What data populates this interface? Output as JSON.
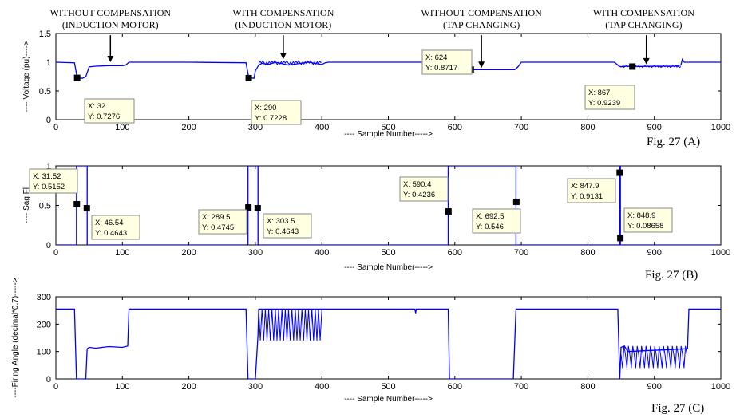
{
  "chart_data": [
    {
      "type": "line",
      "caption": "Fig. 27 (A)",
      "xlabel": "---- Sample Number----->",
      "ylabel": "---- Voltage (pu)---->",
      "xlim": [
        0,
        1000
      ],
      "ylim": [
        0,
        1.5
      ],
      "xticks": [
        "0",
        "100",
        "200",
        "300",
        "400",
        "500",
        "600",
        "700",
        "800",
        "900",
        "1000"
      ],
      "yticks": [
        "0",
        "0.5",
        "1",
        "1.5"
      ],
      "grid": false,
      "color": "#0000ff",
      "series": [
        {
          "x": [
            0,
            28,
            32,
            40,
            45,
            50,
            60,
            80,
            100,
            105,
            110,
            115,
            200,
            286,
            290,
            298,
            300,
            305,
            310,
            320,
            330,
            350,
            380,
            400,
            405,
            410,
            430,
            450,
            480,
            500,
            530,
            560,
            565,
            590,
            620,
            624,
            650,
            680,
            690,
            695,
            700,
            750,
            800,
            840,
            847,
            850,
            855,
            867,
            900,
            930,
            940,
            942,
            945,
            950,
            1000
          ],
          "y": [
            1.0,
            0.99,
            0.73,
            0.72,
            0.75,
            0.92,
            0.93,
            0.94,
            0.94,
            0.95,
            1.0,
            1.0,
            1.0,
            0.99,
            0.73,
            0.72,
            0.85,
            0.95,
            0.98,
            0.96,
            1.0,
            0.95,
            1.0,
            0.96,
            0.99,
            1.0,
            1.0,
            1.0,
            1.0,
            1.0,
            1.0,
            1.0,
            0.87,
            0.87,
            0.87,
            0.8717,
            0.87,
            0.87,
            0.87,
            0.92,
            1.0,
            1.0,
            1.0,
            1.0,
            0.93,
            0.92,
            0.93,
            0.9239,
            0.93,
            0.93,
            0.95,
            1.05,
            1.0,
            1.0,
            1.0
          ]
        }
      ],
      "datatips": [
        {
          "x": 32,
          "y": 0.7276,
          "label_x": "X: 32",
          "label_y": "Y: 0.7276"
        },
        {
          "x": 290,
          "y": 0.7228,
          "label_x": "X: 290",
          "label_y": "Y: 0.7228"
        },
        {
          "x": 624,
          "y": 0.8717,
          "label_x": "X: 624",
          "label_y": "Y: 0.8717"
        },
        {
          "x": 867,
          "y": 0.9239,
          "label_x": "X: 867",
          "label_y": "Y: 0.9239"
        }
      ],
      "annotations": [
        {
          "line1": "WITHOUT COMPENSATION",
          "line2": "(INDUCTION MOTOR)",
          "x": 82
        },
        {
          "line1": "WITH COMPENSATION",
          "line2": "(INDUCTION MOTOR)",
          "x": 342
        },
        {
          "line1": "WITHOUT COMPENSATION",
          "line2": "(TAP CHANGING)",
          "x": 640
        },
        {
          "line1": "WITH COMPENSATION",
          "line2": "(TAP CHANGING)",
          "x": 884
        }
      ],
      "arrows": [
        {
          "x_from": 82,
          "y_from": 1.47,
          "x_to": 82,
          "y_to": 1.0
        },
        {
          "x_from": 342,
          "y_from": 1.47,
          "x_to": 342,
          "y_to": 1.05
        },
        {
          "x_from": 640,
          "y_from": 1.47,
          "x_to": 640,
          "y_to": 0.9
        },
        {
          "x_from": 888,
          "y_from": 1.47,
          "x_to": 888,
          "y_to": 0.96
        }
      ]
    },
    {
      "type": "line",
      "caption": "Fig. 27 (B)",
      "xlabel": "---- Sample Number----->",
      "ylabel": "---- Sag Fl",
      "xlim": [
        0,
        1000
      ],
      "ylim": [
        0,
        1
      ],
      "xticks": [
        "0",
        "100",
        "200",
        "300",
        "400",
        "500",
        "600",
        "700",
        "800",
        "900",
        "1000"
      ],
      "yticks": [
        "0",
        "0.5",
        "1"
      ],
      "grid": false,
      "color": "#0000ff",
      "series": [
        {
          "x": [
            0,
            31,
            31,
            47,
            47,
            289,
            289,
            304,
            304,
            590,
            590,
            692,
            692,
            848,
            848,
            849,
            849,
            1000
          ],
          "y": [
            0,
            0,
            1,
            1,
            0,
            0,
            1,
            1,
            0,
            0,
            1,
            1,
            0,
            0,
            1,
            1,
            0,
            0
          ]
        }
      ],
      "datatips": [
        {
          "x": 31.52,
          "y": 0.5152,
          "label_x": "X: 31.52",
          "label_y": "Y: 0.5152"
        },
        {
          "x": 46.54,
          "y": 0.4643,
          "label_x": "X: 46.54",
          "label_y": "Y: 0.4643"
        },
        {
          "x": 289.5,
          "y": 0.4745,
          "label_x": "X: 289.5",
          "label_y": "Y: 0.4745"
        },
        {
          "x": 303.5,
          "y": 0.4643,
          "label_x": "X: 303.5",
          "label_y": "Y: 0.4643"
        },
        {
          "x": 590.4,
          "y": 0.4236,
          "label_x": "X: 590.4",
          "label_y": "Y: 0.4236"
        },
        {
          "x": 692.5,
          "y": 0.546,
          "label_x": "X: 692.5",
          "label_y": "Y: 0.546"
        },
        {
          "x": 847.9,
          "y": 0.9131,
          "label_x": "X: 847.9",
          "label_y": "Y: 0.9131"
        },
        {
          "x": 848.9,
          "y": 0.08658,
          "label_x": "X: 848.9",
          "label_y": "Y: 0.08658"
        }
      ]
    },
    {
      "type": "line",
      "caption": "Fig. 27 (C)",
      "xlabel": "---- Sample Number----->",
      "ylabel": "----Firing Angle (decimal*0.7)----->",
      "xlim": [
        0,
        1000
      ],
      "ylim": [
        0,
        300
      ],
      "xticks": [
        "0",
        "100",
        "200",
        "300",
        "400",
        "500",
        "600",
        "700",
        "800",
        "900",
        "1000"
      ],
      "yticks": [
        "0",
        "100",
        "200",
        "300"
      ],
      "grid": false,
      "color": "#0000ff",
      "series": [
        {
          "x": [
            0,
            28,
            31,
            45,
            47,
            50,
            60,
            80,
            100,
            108,
            110,
            200,
            286,
            289,
            300,
            304,
            305,
            400,
            402,
            500,
            540,
            541,
            542,
            543,
            580,
            590,
            592,
            688,
            692,
            700,
            845,
            848,
            850,
            855,
            860,
            950,
            952,
            960,
            1000
          ],
          "y": [
            255,
            255,
            0,
            0,
            110,
            115,
            112,
            118,
            115,
            120,
            255,
            255,
            255,
            0,
            0,
            160,
            255,
            255,
            255,
            255,
            255,
            240,
            255,
            255,
            255,
            255,
            0,
            0,
            255,
            255,
            255,
            0,
            115,
            120,
            100,
            110,
            255,
            255,
            255
          ]
        }
      ]
    }
  ]
}
